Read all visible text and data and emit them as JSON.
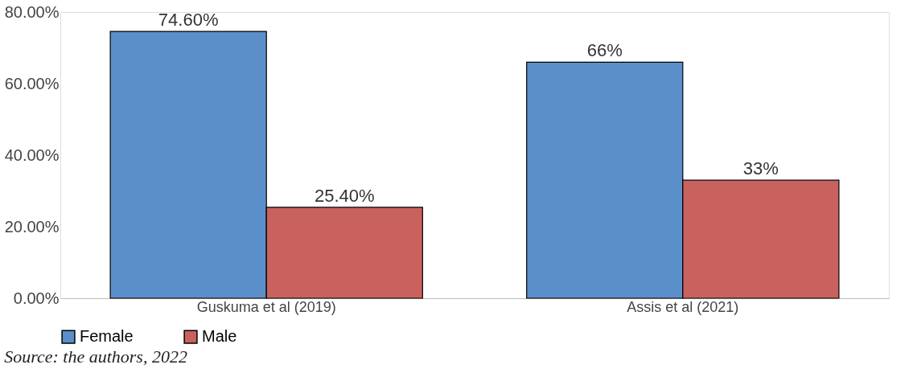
{
  "chart_data": {
    "type": "bar",
    "categories": [
      "Guskuma et al (2019)",
      "Assis et al (2021)"
    ],
    "series": [
      {
        "name": "Female",
        "color": "#5b8fc9",
        "values": [
          74.6,
          66
        ],
        "value_labels": [
          "74.60%",
          "66%"
        ]
      },
      {
        "name": "Male",
        "color": "#c9625e",
        "values": [
          25.4,
          33
        ],
        "value_labels": [
          "25.40%",
          "33%"
        ]
      }
    ],
    "ylim": [
      0,
      80
    ],
    "yticks": [
      {
        "value": 0,
        "label": "0.00%"
      },
      {
        "value": 20,
        "label": "20.00%"
      },
      {
        "value": 40,
        "label": "40.00%"
      },
      {
        "value": 60,
        "label": "60.00%"
      },
      {
        "value": 80,
        "label": "80.00%"
      }
    ],
    "grid": false,
    "legend": "bottom",
    "annotations": [
      "Source: the authors, 2022"
    ]
  }
}
